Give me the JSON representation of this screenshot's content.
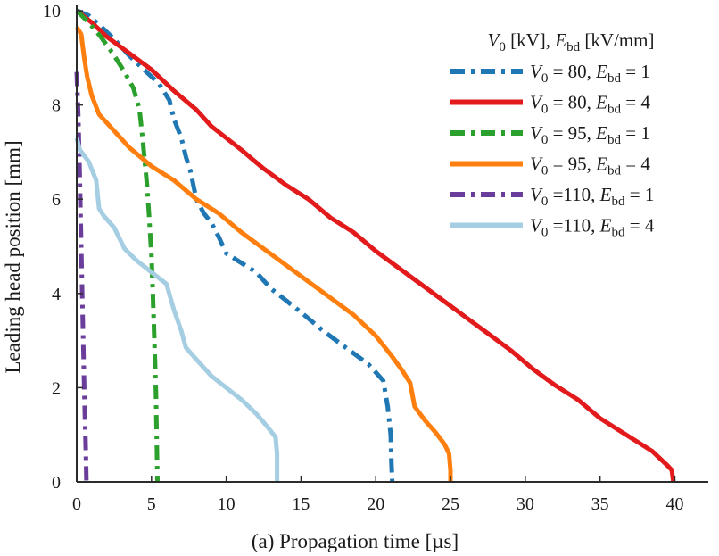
{
  "chart_data": {
    "type": "line",
    "xlabel": "(a) Propagation time [µs]",
    "ylabel": "Leading head position [mm]",
    "xlim": [
      0,
      42
    ],
    "ylim": [
      0,
      10
    ],
    "xticks": [
      0,
      5,
      10,
      15,
      20,
      25,
      30,
      35,
      40
    ],
    "yticks": [
      0,
      2,
      4,
      6,
      8,
      10
    ],
    "grid": false,
    "legend": {
      "placement": "top-right",
      "title_parts": [
        "V",
        "0",
        " [kV], ",
        "E",
        "bd",
        " [kV/mm]"
      ]
    },
    "series": [
      {
        "name": "V0 = 80, Ebd = 1",
        "label_parts": [
          "V",
          "0",
          " = 80, ",
          "E",
          "bd",
          " = 1"
        ],
        "color": "#1f77b4",
        "dash": "dashdot",
        "x": [
          0.0,
          0.8,
          1.5,
          2.5,
          3.5,
          4.5,
          5.5,
          6.2,
          6.5,
          7.0,
          7.3,
          7.6,
          8.0,
          8.5,
          9.0,
          9.5,
          10.0,
          11.0,
          12.0,
          13.0,
          14.0,
          15.0,
          16.5,
          18.0,
          19.5,
          20.5,
          20.8,
          21.0,
          21.05,
          21.1
        ],
        "y": [
          10.0,
          9.9,
          9.7,
          9.4,
          9.05,
          8.75,
          8.45,
          8.1,
          7.7,
          7.3,
          6.9,
          6.6,
          6.0,
          5.7,
          5.5,
          5.2,
          4.85,
          4.65,
          4.45,
          4.1,
          3.85,
          3.6,
          3.2,
          2.85,
          2.5,
          2.15,
          1.6,
          1.0,
          0.4,
          0.0
        ]
      },
      {
        "name": "V0 = 80, Ebd = 4",
        "label_parts": [
          "V",
          "0",
          " = 80, ",
          "E",
          "bd",
          " = 4"
        ],
        "color": "#e31a1c",
        "dash": "solid",
        "x": [
          0.0,
          1.0,
          2.0,
          3.5,
          5.0,
          6.5,
          8.0,
          9.0,
          10.0,
          11.0,
          12.5,
          14.0,
          15.5,
          17.0,
          18.5,
          20.0,
          21.5,
          23.0,
          24.5,
          26.0,
          27.5,
          29.0,
          30.5,
          32.0,
          33.5,
          35.0,
          36.5,
          37.5,
          38.5,
          39.5,
          39.8,
          39.9
        ],
        "y": [
          10.0,
          9.75,
          9.45,
          9.1,
          8.75,
          8.3,
          7.9,
          7.55,
          7.3,
          7.05,
          6.65,
          6.3,
          6.0,
          5.6,
          5.3,
          4.9,
          4.55,
          4.2,
          3.85,
          3.5,
          3.15,
          2.8,
          2.4,
          2.05,
          1.75,
          1.35,
          1.05,
          0.85,
          0.65,
          0.35,
          0.25,
          0.0
        ]
      },
      {
        "name": "V0 = 95, Ebd = 1",
        "label_parts": [
          "V",
          "0",
          " = 95, ",
          "E",
          "bd",
          " = 1"
        ],
        "color": "#2ca02c",
        "dash": "dashdot",
        "x": [
          0.0,
          0.8,
          1.6,
          2.4,
          3.2,
          3.8,
          4.2,
          4.4,
          4.55,
          4.7,
          4.85,
          5.0,
          5.1,
          5.2,
          5.3,
          5.35,
          5.4
        ],
        "y": [
          10.0,
          9.75,
          9.45,
          9.1,
          8.7,
          8.35,
          7.9,
          7.3,
          6.8,
          6.3,
          5.6,
          4.8,
          3.9,
          2.9,
          1.9,
          0.9,
          0.0
        ]
      },
      {
        "name": "V0 = 95, Ebd = 4",
        "label_parts": [
          "V",
          "0",
          " = 95, ",
          "E",
          "bd",
          " = 4"
        ],
        "color": "#ff7f0e",
        "dash": "solid",
        "x": [
          0.0,
          0.3,
          0.5,
          0.7,
          1.0,
          1.5,
          2.5,
          3.5,
          5.0,
          6.5,
          8.0,
          9.5,
          11.0,
          12.5,
          14.0,
          15.5,
          17.0,
          18.5,
          20.0,
          21.0,
          21.8,
          22.3,
          22.6,
          23.3,
          24.0,
          24.6,
          24.9,
          25.0,
          25.0
        ],
        "y": [
          9.65,
          9.5,
          9.0,
          8.6,
          8.2,
          7.8,
          7.45,
          7.1,
          6.7,
          6.4,
          6.0,
          5.7,
          5.3,
          4.95,
          4.6,
          4.25,
          3.9,
          3.55,
          3.1,
          2.7,
          2.35,
          2.1,
          1.6,
          1.3,
          1.05,
          0.8,
          0.6,
          0.25,
          0.0
        ]
      },
      {
        "name": "V0 =110, Ebd = 1",
        "label_parts": [
          "V",
          "0",
          " =110, ",
          "E",
          "bd",
          " = 1"
        ],
        "color": "#6a3d9a",
        "dash": "dashdot",
        "x": [
          0.0,
          0.1,
          0.2,
          0.3,
          0.4,
          0.5,
          0.6,
          0.65
        ],
        "y": [
          8.7,
          7.8,
          6.5,
          5.0,
          3.5,
          2.0,
          0.7,
          0.0
        ]
      },
      {
        "name": "V0 =110, Ebd = 4",
        "label_parts": [
          "V",
          "0",
          " =110, ",
          "E",
          "bd",
          " = 4"
        ],
        "color": "#a6cee3",
        "dash": "solid",
        "x": [
          0.0,
          0.2,
          0.8,
          1.3,
          1.5,
          1.8,
          2.5,
          3.2,
          4.0,
          5.0,
          6.0,
          6.5,
          7.0,
          7.3,
          8.0,
          9.0,
          10.0,
          11.0,
          12.0,
          12.8,
          13.3,
          13.4,
          13.4
        ],
        "y": [
          7.3,
          7.05,
          6.8,
          6.4,
          5.8,
          5.65,
          5.4,
          4.95,
          4.7,
          4.45,
          4.2,
          3.65,
          3.2,
          2.85,
          2.6,
          2.25,
          2.0,
          1.75,
          1.45,
          1.15,
          0.95,
          0.6,
          0.0
        ]
      }
    ]
  }
}
